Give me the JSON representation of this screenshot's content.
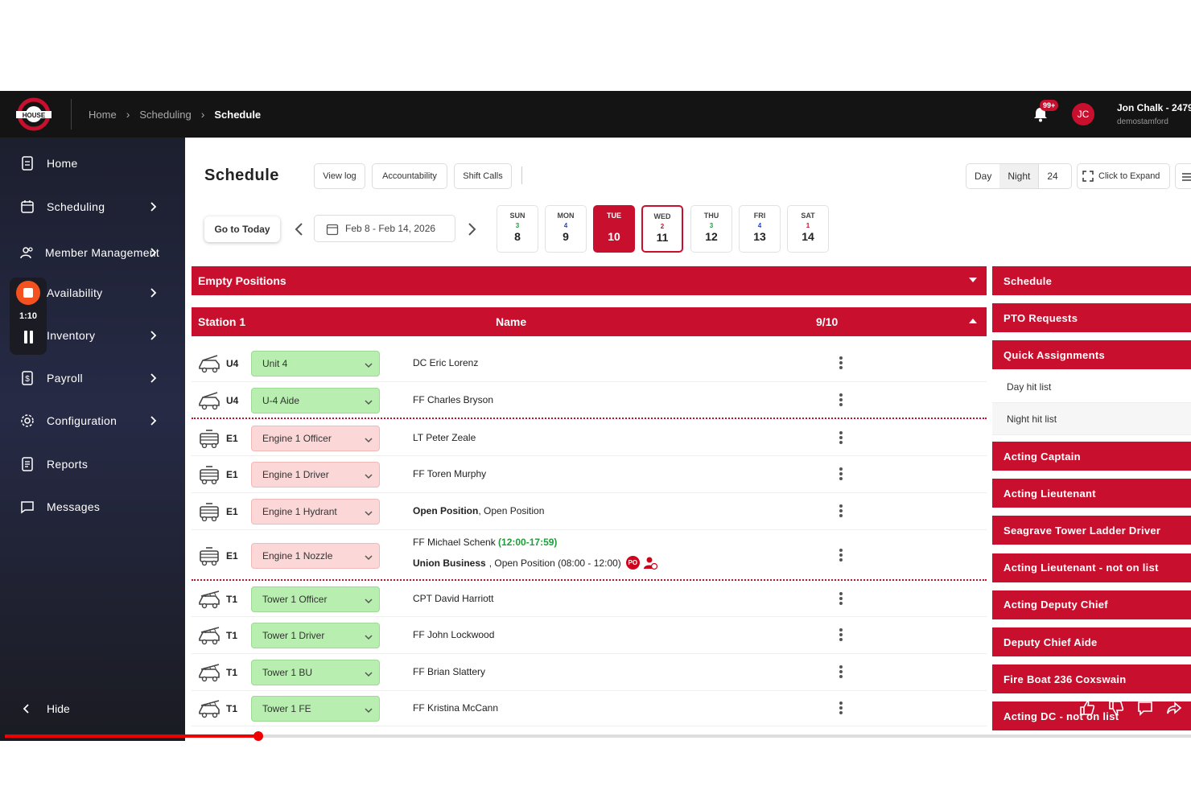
{
  "header": {
    "breadcrumb": [
      "Home",
      "Scheduling",
      "Schedule"
    ],
    "notif_badge": "99+",
    "avatar_initials": "JC",
    "user_name": "Jon Chalk - 2479",
    "user_org": "demostamford"
  },
  "sidebar": {
    "items": [
      {
        "label": "Home",
        "icon": "file-icon"
      },
      {
        "label": "Scheduling",
        "icon": "calendar-icon"
      },
      {
        "label": "Member Management",
        "icon": "users-icon"
      },
      {
        "label": "Availability",
        "icon": "availability-icon"
      },
      {
        "label": "Inventory",
        "icon": "box-icon"
      },
      {
        "label": "Payroll",
        "icon": "dollar-doc-icon"
      },
      {
        "label": "Configuration",
        "icon": "gear-icon"
      },
      {
        "label": "Reports",
        "icon": "report-icon"
      },
      {
        "label": "Messages",
        "icon": "message-icon"
      }
    ],
    "hide_label": "Hide",
    "recorder_time": "1:10"
  },
  "toolbar": {
    "title": "Schedule",
    "view_log": "View log",
    "accountability": "Accountability",
    "shift_calls": "Shift Calls",
    "day": "Day",
    "night": "Night",
    "h24": "24",
    "expand": "Click to Expand",
    "go_today": "Go to Today",
    "date_range": "Feb 8 - Feb 14, 2026"
  },
  "days": [
    {
      "name": "SUN",
      "count": "3",
      "count_color": "#1e9e3a",
      "date": "8"
    },
    {
      "name": "MON",
      "count": "4",
      "count_color": "#1f3fd8",
      "date": "9"
    },
    {
      "name": "TUE",
      "count": "",
      "count_color": "#ffffff",
      "date": "10"
    },
    {
      "name": "WED",
      "count": "2",
      "count_color": "#c8102e",
      "date": "11"
    },
    {
      "name": "THU",
      "count": "3",
      "count_color": "#1e9e3a",
      "date": "12"
    },
    {
      "name": "FRI",
      "count": "4",
      "count_color": "#1f3fd8",
      "date": "13"
    },
    {
      "name": "SAT",
      "count": "1",
      "count_color": "#c8102e",
      "date": "14"
    }
  ],
  "empty_positions": "Empty Positions",
  "station": {
    "name": "Station 1",
    "col_name": "Name",
    "filled": "9/10"
  },
  "rows": [
    {
      "unit": "U4",
      "position": "Unit 4",
      "style": "green",
      "name": "DC Eric Lorenz"
    },
    {
      "unit": "U4",
      "position": "U-4 Aide",
      "style": "green",
      "name": "FF Charles Bryson"
    },
    {
      "unit": "E1",
      "position": "Engine 1 Officer",
      "style": "pink",
      "name": "LT Peter Zeale"
    },
    {
      "unit": "E1",
      "position": "Engine 1 Driver",
      "style": "pink",
      "name": "FF Toren Murphy"
    },
    {
      "unit": "E1",
      "position": "Engine 1 Hydrant",
      "style": "pink",
      "name_bold": "Open Position",
      "name": ", Open Position"
    },
    {
      "unit": "E1",
      "position": "Engine 1 Nozzle",
      "style": "pink",
      "name": "FF Michael Schenk",
      "time": "(12:00-17:59)",
      "line2_bold": "Union Business",
      "line2": ", Open Position (08:00 - 12:00)",
      "badge": "PO"
    },
    {
      "unit": "T1",
      "position": "Tower 1 Officer",
      "style": "green",
      "name": "CPT David Harriott"
    },
    {
      "unit": "T1",
      "position": "Tower 1 Driver",
      "style": "green",
      "name": "FF John Lockwood"
    },
    {
      "unit": "T1",
      "position": "Tower 1 BU",
      "style": "green",
      "name": "FF Brian Slattery"
    },
    {
      "unit": "T1",
      "position": "Tower 1 FE",
      "style": "green",
      "name": "FF Kristina McCann"
    }
  ],
  "right_panel": {
    "schedule": "Schedule",
    "pto": "PTO Requests",
    "quick": "Quick Assignments",
    "day_hit": "Day hit list",
    "night_hit": "Night hit list",
    "lists": [
      "Acting Captain",
      "Acting Lieutenant",
      "Seagrave Tower Ladder Driver",
      "Acting Lieutenant - not on list",
      "Acting Deputy Chief",
      "Deputy Chief Aide",
      "Fire Boat 236 Coxswain",
      "Acting DC - not on list"
    ]
  },
  "colors": {
    "brand_red": "#c8102e",
    "pos_green": "#b8eeb0",
    "pos_pink": "#fbd7d7"
  }
}
